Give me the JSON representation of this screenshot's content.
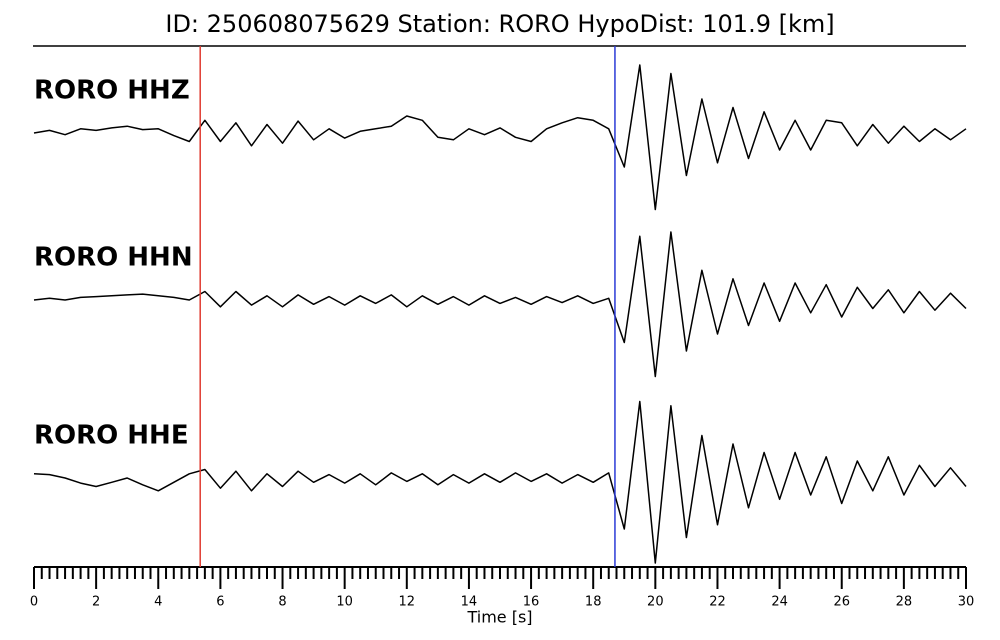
{
  "chart_data": {
    "type": "seismogram",
    "title": "ID: 250608075629   Station: RORO   HypoDist:   101.9 [km]",
    "xlabel": "Time [s]",
    "xlim": [
      0,
      30
    ],
    "xticks": [
      0,
      2,
      4,
      6,
      8,
      10,
      12,
      14,
      16,
      18,
      20,
      22,
      24,
      26,
      28,
      30
    ],
    "xminorticks": [
      0.25,
      0.5,
      0.75,
      1,
      1.25,
      1.5,
      1.75,
      2.25,
      2.5,
      2.75,
      3,
      3.25,
      3.5,
      3.75,
      4.25,
      4.5,
      4.75,
      5,
      5.25,
      5.5,
      5.75,
      6.25,
      6.5,
      6.75,
      7,
      7.25,
      7.5,
      7.75,
      8.25,
      8.5,
      8.75,
      9,
      9.25,
      9.5,
      9.75,
      10.25,
      10.5,
      10.75,
      11,
      11.25,
      11.5,
      11.75,
      12.25,
      12.5,
      12.75,
      13,
      13.25,
      13.5,
      13.75,
      14.25,
      14.5,
      14.75,
      15,
      15.25,
      15.5,
      15.75,
      16.25,
      16.5,
      16.75,
      17,
      17.25,
      17.5,
      17.75,
      18.25,
      18.5,
      18.75,
      19,
      19.25,
      19.5,
      19.75,
      20.25,
      20.5,
      20.75,
      21,
      21.25,
      21.5,
      21.75,
      22.25,
      22.5,
      22.75,
      23,
      23.25,
      23.5,
      23.75,
      24.25,
      24.5,
      24.75,
      25,
      25.25,
      25.5,
      25.75,
      26.25,
      26.5,
      26.75,
      27,
      27.25,
      27.5,
      27.75,
      28.25,
      28.5,
      28.75,
      29,
      29.25,
      29.5,
      29.75
    ],
    "ylim": [
      -1,
      1
    ],
    "picks": [
      {
        "x": 5.35,
        "color": "#e03c31"
      },
      {
        "x": 18.7,
        "color": "#2b3bd6"
      }
    ],
    "label_color": "#4c9a0a",
    "x": [
      0,
      0.5,
      1,
      1.5,
      2,
      2.5,
      3,
      3.5,
      4,
      4.5,
      5,
      5.5,
      6,
      6.5,
      7,
      7.5,
      8,
      8.5,
      9,
      9.5,
      10,
      10.5,
      11,
      11.5,
      12,
      12.5,
      13,
      13.5,
      14,
      14.5,
      15,
      15.5,
      16,
      16.5,
      17,
      17.5,
      18,
      18.5,
      19,
      19.5,
      20,
      20.5,
      21,
      21.5,
      22,
      22.5,
      23,
      23.5,
      24,
      24.5,
      25,
      25.5,
      26,
      26.5,
      27,
      27.5,
      28,
      28.5,
      29,
      29.5,
      30
    ],
    "series": [
      {
        "name": "RORO HHZ",
        "color": "#000000",
        "values": [
          0,
          0.03,
          -0.02,
          0.05,
          0.03,
          0.06,
          0.08,
          0.04,
          0.05,
          -0.03,
          -0.1,
          0.15,
          -0.1,
          0.12,
          -0.15,
          0.1,
          -0.12,
          0.14,
          -0.08,
          0.05,
          -0.06,
          0.02,
          0.05,
          0.08,
          0.2,
          0.15,
          -0.05,
          -0.08,
          0.05,
          -0.02,
          0.06,
          -0.05,
          -0.1,
          0.05,
          0.12,
          0.18,
          0.15,
          0.05,
          -0.4,
          0.8,
          -0.9,
          0.7,
          -0.5,
          0.4,
          -0.35,
          0.3,
          -0.3,
          0.25,
          -0.2,
          0.15,
          -0.2,
          0.15,
          0.12,
          -0.15,
          0.1,
          -0.12,
          0.08,
          -0.1,
          0.05,
          -0.08,
          0.05
        ]
      },
      {
        "name": "RORO HHN",
        "color": "#000000",
        "values": [
          0,
          0.02,
          0,
          0.03,
          0.04,
          0.05,
          0.06,
          0.07,
          0.05,
          0.03,
          0,
          0.1,
          -0.08,
          0.1,
          -0.06,
          0.05,
          -0.08,
          0.06,
          -0.05,
          0.04,
          -0.06,
          0.05,
          -0.04,
          0.06,
          -0.08,
          0.05,
          -0.05,
          0.04,
          -0.06,
          0.05,
          -0.04,
          0.03,
          -0.05,
          0.04,
          -0.03,
          0.05,
          -0.04,
          0.02,
          -0.5,
          0.75,
          -0.9,
          0.8,
          -0.6,
          0.35,
          -0.4,
          0.25,
          -0.3,
          0.2,
          -0.25,
          0.2,
          -0.15,
          0.18,
          -0.2,
          0.15,
          -0.1,
          0.12,
          -0.15,
          0.1,
          -0.12,
          0.08,
          -0.1
        ]
      },
      {
        "name": "RORO HHE",
        "color": "#000000",
        "values": [
          0.05,
          0.04,
          0,
          -0.06,
          -0.1,
          -0.05,
          0,
          -0.08,
          -0.15,
          -0.05,
          0.05,
          0.1,
          -0.12,
          0.08,
          -0.15,
          0.05,
          -0.1,
          0.08,
          -0.05,
          0.04,
          -0.06,
          0.05,
          -0.08,
          0.06,
          -0.04,
          0.05,
          -0.08,
          0.04,
          -0.06,
          0.05,
          -0.05,
          0.06,
          -0.04,
          0.05,
          -0.06,
          0.04,
          -0.05,
          0.06,
          -0.6,
          0.9,
          -1.0,
          0.85,
          -0.7,
          0.5,
          -0.55,
          0.4,
          -0.35,
          0.3,
          -0.25,
          0.3,
          -0.2,
          0.25,
          -0.3,
          0.2,
          -0.15,
          0.25,
          -0.2,
          0.15,
          -0.1,
          0.12,
          -0.1
        ]
      }
    ]
  }
}
